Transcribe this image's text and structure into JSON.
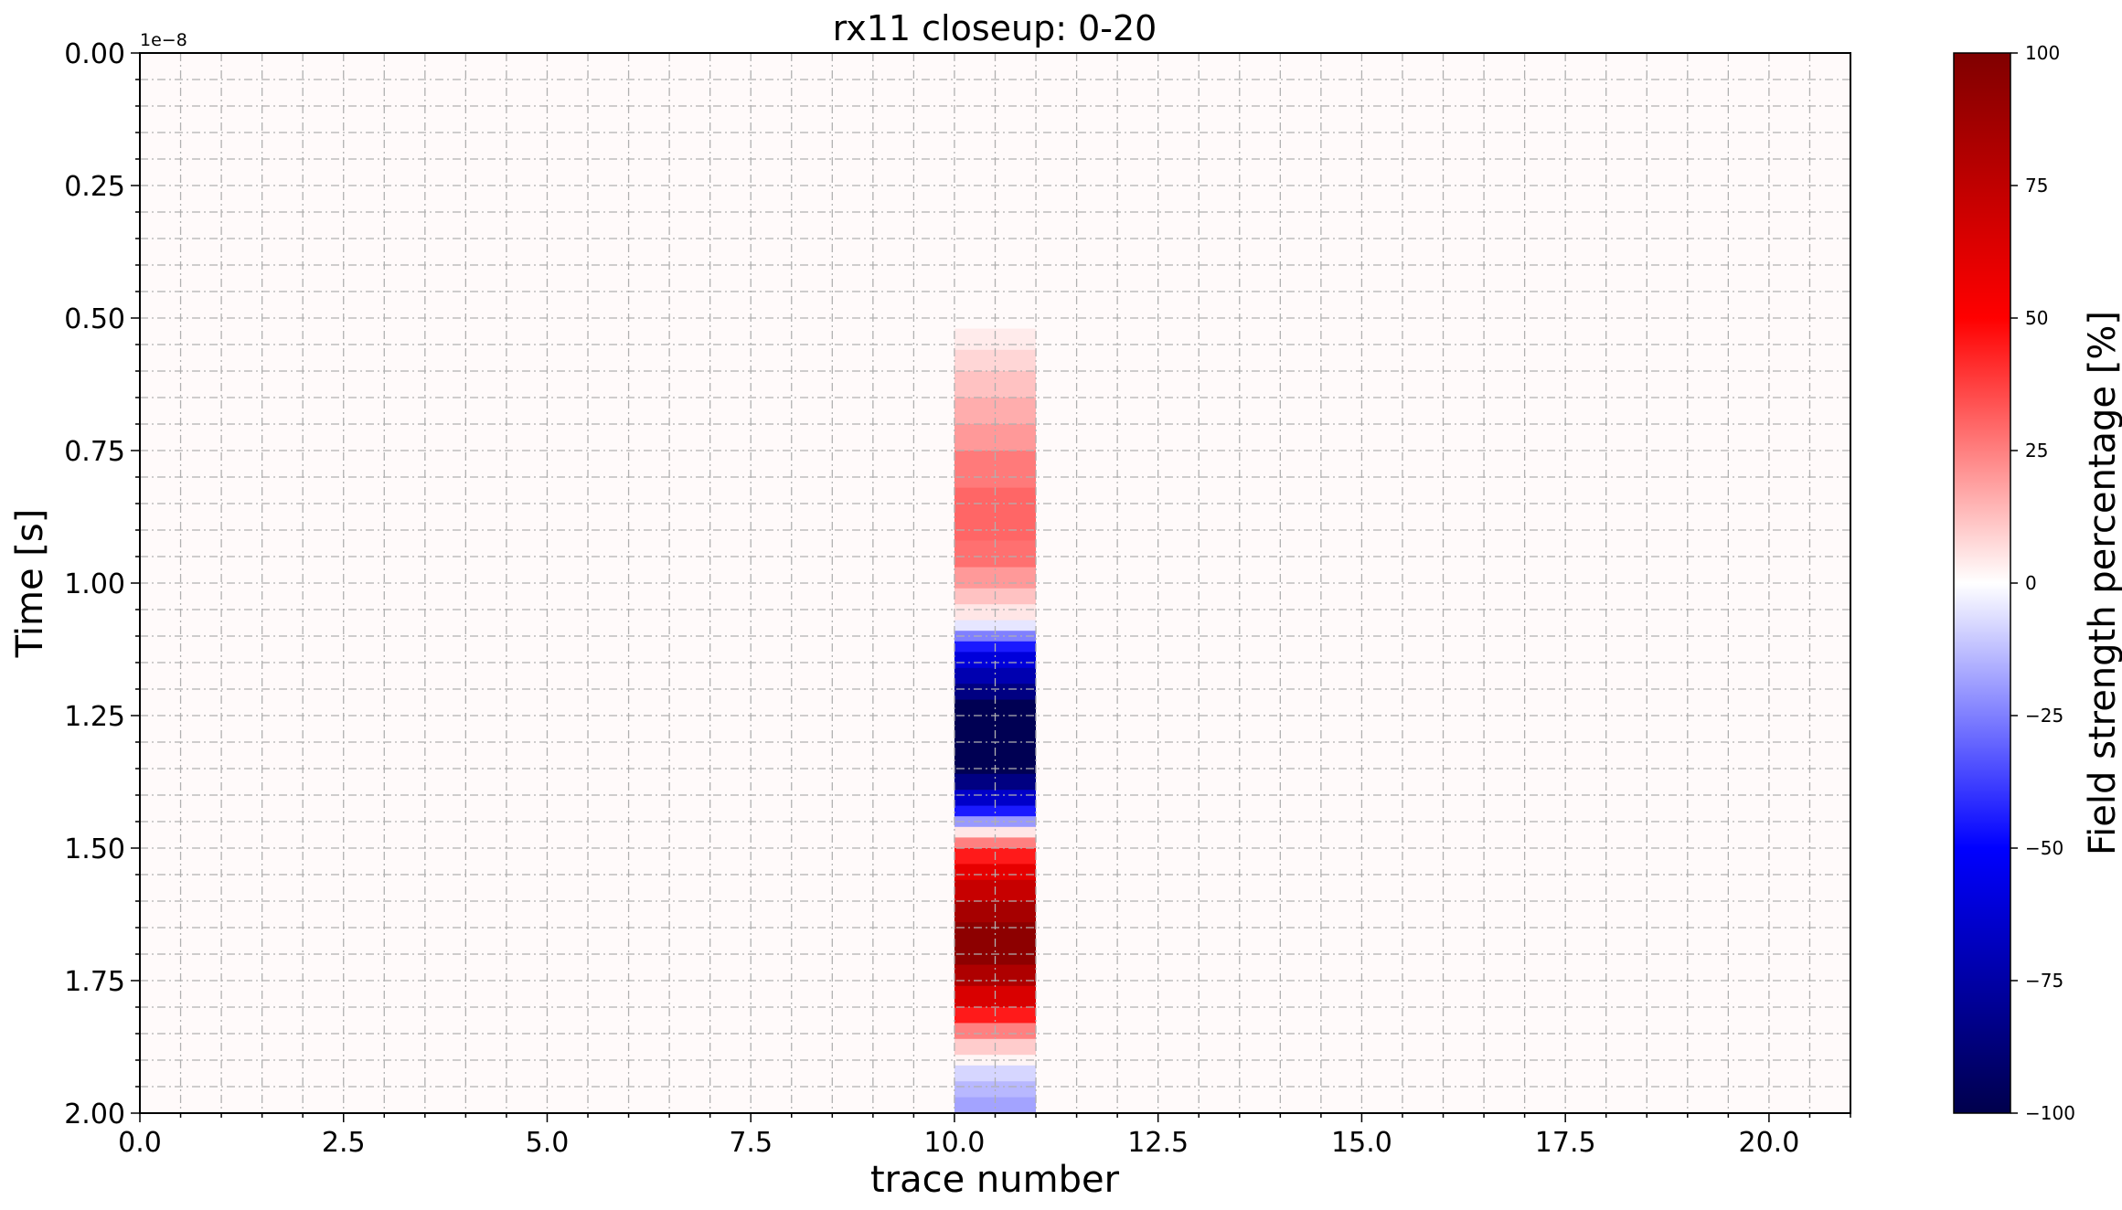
{
  "chart_data": {
    "type": "heatmap",
    "title": "rx11 closeup: 0-20",
    "xlabel": "trace number",
    "ylabel": "Time [s]",
    "y_offset_label": "1e−8",
    "y_scale_factor": 1e-08,
    "xlim": [
      0,
      21
    ],
    "ylim": [
      2.0,
      0.0
    ],
    "y_inverted": true,
    "x_ticks": [
      "0.0",
      "2.5",
      "5.0",
      "7.5",
      "10.0",
      "12.5",
      "15.0",
      "17.5",
      "20.0"
    ],
    "y_ticks": [
      "0.00",
      "0.25",
      "0.50",
      "0.75",
      "1.00",
      "1.25",
      "1.50",
      "1.75",
      "2.00"
    ],
    "grid": true,
    "grid_style": "dashdot",
    "colorbar": {
      "label": "Field strength percentage [%]",
      "range": [
        -100,
        100
      ],
      "ticks": [
        "100",
        "75",
        "50",
        "25",
        "0",
        "−25",
        "−50",
        "−75",
        "−100"
      ],
      "colormap": "seismic",
      "colors": [
        "#00004c",
        "#0000ff",
        "#ffffff",
        "#ff0000",
        "#800000"
      ]
    },
    "active_trace": {
      "x_start": 10,
      "x_end": 11
    },
    "background_value": 1,
    "column_profile": [
      {
        "t0": 0.0,
        "t1": 0.52,
        "v": 1
      },
      {
        "t0": 0.52,
        "t1": 0.56,
        "v": 4
      },
      {
        "t0": 0.56,
        "t1": 0.6,
        "v": 8
      },
      {
        "t0": 0.6,
        "t1": 0.65,
        "v": 12
      },
      {
        "t0": 0.65,
        "t1": 0.7,
        "v": 16
      },
      {
        "t0": 0.7,
        "t1": 0.75,
        "v": 20
      },
      {
        "t0": 0.75,
        "t1": 0.82,
        "v": 26
      },
      {
        "t0": 0.82,
        "t1": 0.92,
        "v": 30
      },
      {
        "t0": 0.92,
        "t1": 0.97,
        "v": 28
      },
      {
        "t0": 0.97,
        "t1": 1.01,
        "v": 20
      },
      {
        "t0": 1.01,
        "t1": 1.04,
        "v": 12
      },
      {
        "t0": 1.04,
        "t1": 1.07,
        "v": 5
      },
      {
        "t0": 1.07,
        "t1": 1.09,
        "v": -5
      },
      {
        "t0": 1.09,
        "t1": 1.11,
        "v": -25
      },
      {
        "t0": 1.11,
        "t1": 1.13,
        "v": -45
      },
      {
        "t0": 1.13,
        "t1": 1.16,
        "v": -60
      },
      {
        "t0": 1.16,
        "t1": 1.19,
        "v": -72
      },
      {
        "t0": 1.19,
        "t1": 1.22,
        "v": -85
      },
      {
        "t0": 1.22,
        "t1": 1.36,
        "v": -98
      },
      {
        "t0": 1.36,
        "t1": 1.39,
        "v": -85
      },
      {
        "t0": 1.39,
        "t1": 1.42,
        "v": -65
      },
      {
        "t0": 1.42,
        "t1": 1.44,
        "v": -45
      },
      {
        "t0": 1.44,
        "t1": 1.46,
        "v": -20
      },
      {
        "t0": 1.46,
        "t1": 1.48,
        "v": 5
      },
      {
        "t0": 1.48,
        "t1": 1.5,
        "v": 25
      },
      {
        "t0": 1.5,
        "t1": 1.53,
        "v": 45
      },
      {
        "t0": 1.53,
        "t1": 1.56,
        "v": 60
      },
      {
        "t0": 1.56,
        "t1": 1.6,
        "v": 72
      },
      {
        "t0": 1.6,
        "t1": 1.64,
        "v": 85
      },
      {
        "t0": 1.64,
        "t1": 1.72,
        "v": 95
      },
      {
        "t0": 1.72,
        "t1": 1.76,
        "v": 82
      },
      {
        "t0": 1.76,
        "t1": 1.8,
        "v": 65
      },
      {
        "t0": 1.8,
        "t1": 1.83,
        "v": 45
      },
      {
        "t0": 1.83,
        "t1": 1.86,
        "v": 25
      },
      {
        "t0": 1.86,
        "t1": 1.89,
        "v": 10
      },
      {
        "t0": 1.89,
        "t1": 1.91,
        "v": 2
      },
      {
        "t0": 1.91,
        "t1": 1.94,
        "v": -8
      },
      {
        "t0": 1.94,
        "t1": 1.97,
        "v": -14
      },
      {
        "t0": 1.97,
        "t1": 2.0,
        "v": -18
      }
    ]
  }
}
